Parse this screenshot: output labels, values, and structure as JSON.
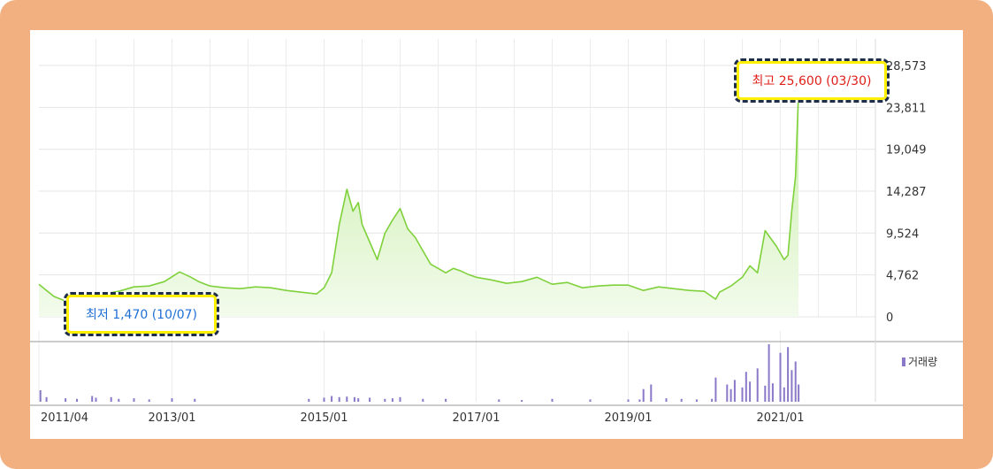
{
  "chart_data": {
    "type": "area",
    "price_axis": {
      "ticks": [
        "28,573",
        "23,811",
        "19,049",
        "14,287",
        "9,524",
        "4,762",
        "0"
      ],
      "tick_values": [
        28573,
        23811,
        19049,
        14287,
        9524,
        4762,
        0
      ],
      "ylim": [
        0,
        28573
      ]
    },
    "x_axis": {
      "ticks": [
        "2011/04",
        "2013/01",
        "2015/01",
        "2017/01",
        "2019/01",
        "2021/01"
      ],
      "tick_dates": [
        2011.25,
        2013.0,
        2015.0,
        2017.0,
        2019.0,
        2021.0
      ],
      "xlim": [
        2011.25,
        2022.25
      ]
    },
    "price_series": {
      "x": [
        2011.25,
        2011.35,
        2011.45,
        2011.6,
        2011.77,
        2011.9,
        2012.1,
        2012.3,
        2012.5,
        2012.7,
        2012.9,
        2013.1,
        2013.25,
        2013.35,
        2013.5,
        2013.7,
        2013.9,
        2014.1,
        2014.3,
        2014.5,
        2014.7,
        2014.9,
        2015.0,
        2015.1,
        2015.2,
        2015.3,
        2015.38,
        2015.45,
        2015.5,
        2015.6,
        2015.7,
        2015.8,
        2015.9,
        2016.0,
        2016.1,
        2016.2,
        2016.3,
        2016.4,
        2016.5,
        2016.6,
        2016.7,
        2016.8,
        2016.9,
        2017.0,
        2017.2,
        2017.4,
        2017.6,
        2017.8,
        2018.0,
        2018.2,
        2018.4,
        2018.6,
        2018.8,
        2019.0,
        2019.2,
        2019.4,
        2019.6,
        2019.8,
        2020.0,
        2020.15,
        2020.2,
        2020.35,
        2020.5,
        2020.6,
        2020.7,
        2020.8,
        2020.85,
        2020.95,
        2021.05,
        2021.1,
        2021.15,
        2021.2,
        2021.24
      ],
      "values": [
        3700,
        3000,
        2300,
        1800,
        1470,
        2200,
        2600,
        2900,
        3400,
        3500,
        4000,
        5100,
        4500,
        4000,
        3500,
        3300,
        3200,
        3400,
        3300,
        3000,
        2800,
        2600,
        3300,
        5000,
        10500,
        14500,
        12000,
        13000,
        10500,
        8500,
        6500,
        9500,
        11000,
        12300,
        10000,
        9000,
        7500,
        6000,
        5500,
        5000,
        5500,
        5200,
        4800,
        4500,
        4200,
        3800,
        4000,
        4500,
        3700,
        3900,
        3300,
        3500,
        3600,
        3600,
        3000,
        3400,
        3200,
        3000,
        2900,
        2000,
        2800,
        3500,
        4500,
        5800,
        5000,
        9800,
        9200,
        8000,
        6500,
        7000,
        12000,
        16000,
        25600
      ]
    },
    "volume_series": {
      "label": "거래량",
      "x": [
        2011.27,
        2011.35,
        2011.6,
        2011.75,
        2011.95,
        2012.0,
        2012.2,
        2012.3,
        2012.5,
        2012.7,
        2013.0,
        2013.3,
        2014.8,
        2015.0,
        2015.1,
        2015.2,
        2015.3,
        2015.4,
        2015.45,
        2015.6,
        2015.8,
        2015.9,
        2016.0,
        2016.3,
        2016.6,
        2017.3,
        2017.6,
        2018.0,
        2018.5,
        2019.0,
        2019.15,
        2019.2,
        2019.3,
        2019.5,
        2019.7,
        2019.9,
        2020.1,
        2020.15,
        2020.3,
        2020.35,
        2020.4,
        2020.5,
        2020.55,
        2020.6,
        2020.7,
        2020.8,
        2020.85,
        2020.9,
        2021.0,
        2021.05,
        2021.1,
        2021.15,
        2021.2,
        2021.24
      ],
      "values": [
        0.2,
        0.08,
        0.06,
        0.05,
        0.1,
        0.07,
        0.08,
        0.05,
        0.06,
        0.04,
        0.06,
        0.05,
        0.05,
        0.07,
        0.1,
        0.08,
        0.09,
        0.08,
        0.06,
        0.07,
        0.05,
        0.06,
        0.08,
        0.05,
        0.05,
        0.04,
        0.03,
        0.05,
        0.04,
        0.04,
        0.04,
        0.22,
        0.3,
        0.06,
        0.05,
        0.04,
        0.05,
        0.42,
        0.3,
        0.22,
        0.38,
        0.25,
        0.52,
        0.35,
        0.58,
        0.28,
        1.0,
        0.32,
        0.85,
        0.25,
        0.95,
        0.55,
        0.7,
        0.3
      ]
    },
    "min_label": "최저 1,470 (10/07)",
    "max_label": "최고 25,600 (03/30)",
    "min_point": {
      "x": 2011.77,
      "y": 1470
    },
    "max_point": {
      "x": 2021.24,
      "y": 25600
    },
    "grid": true,
    "colors": {
      "line": "#7fd13b",
      "fill_top": "#c8eeaa",
      "fill_bottom": "#f3fbec",
      "volume": "#8a78c8",
      "min_marker": "#1f6fd6",
      "max_marker": "#e0201a",
      "frame": "#f2af7f",
      "callout_border": "#1e2d4a",
      "callout_outline": "#fff000"
    }
  }
}
